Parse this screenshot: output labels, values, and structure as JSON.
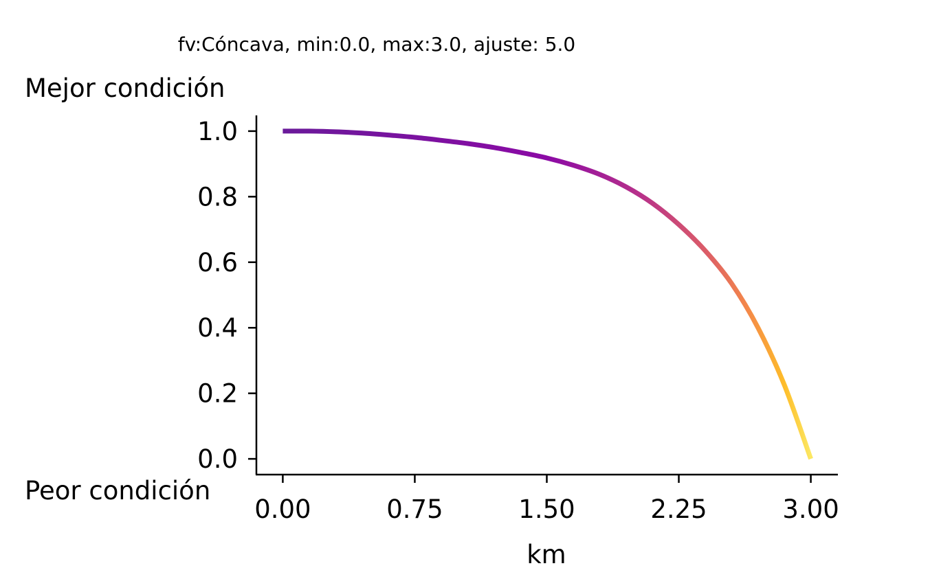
{
  "chart_data": {
    "type": "line",
    "title": "fv:Cóncava, min:0.0, max:3.0, ajuste: 5.0",
    "xlabel": "km",
    "ylabel_top": "Mejor condición",
    "ylabel_bottom": "Peor condición",
    "xlim": [
      -0.15,
      3.15
    ],
    "ylim": [
      -0.048,
      1.048
    ],
    "x_ticks": [
      0.0,
      0.75,
      1.5,
      2.25,
      3.0
    ],
    "x_tick_labels": [
      "0.00",
      "0.75",
      "1.50",
      "2.25",
      "3.00"
    ],
    "y_ticks": [
      0.0,
      0.2,
      0.4,
      0.6,
      0.8,
      1.0
    ],
    "y_tick_labels": [
      "0.0",
      "0.2",
      "0.4",
      "0.6",
      "0.8",
      "1.0"
    ],
    "grid": false,
    "colormap": "plasma",
    "color_stops": [
      "#6a1a9a",
      "#8b0aa5",
      "#b83289",
      "#db5c68",
      "#f48849",
      "#febd2a",
      "#fce863"
    ],
    "series": [
      {
        "x": [
          0.0,
          0.15,
          0.3,
          0.45,
          0.6,
          0.75,
          0.9,
          1.05,
          1.2,
          1.35,
          1.5,
          1.65,
          1.8,
          1.95,
          2.1,
          2.25,
          2.4,
          2.55,
          2.7,
          2.85,
          3.0
        ],
        "values": [
          1.0,
          1.0,
          0.998,
          0.994,
          0.988,
          0.981,
          0.972,
          0.962,
          0.95,
          0.935,
          0.918,
          0.896,
          0.868,
          0.83,
          0.78,
          0.715,
          0.635,
          0.535,
          0.4,
          0.225,
          0.0
        ]
      }
    ]
  }
}
